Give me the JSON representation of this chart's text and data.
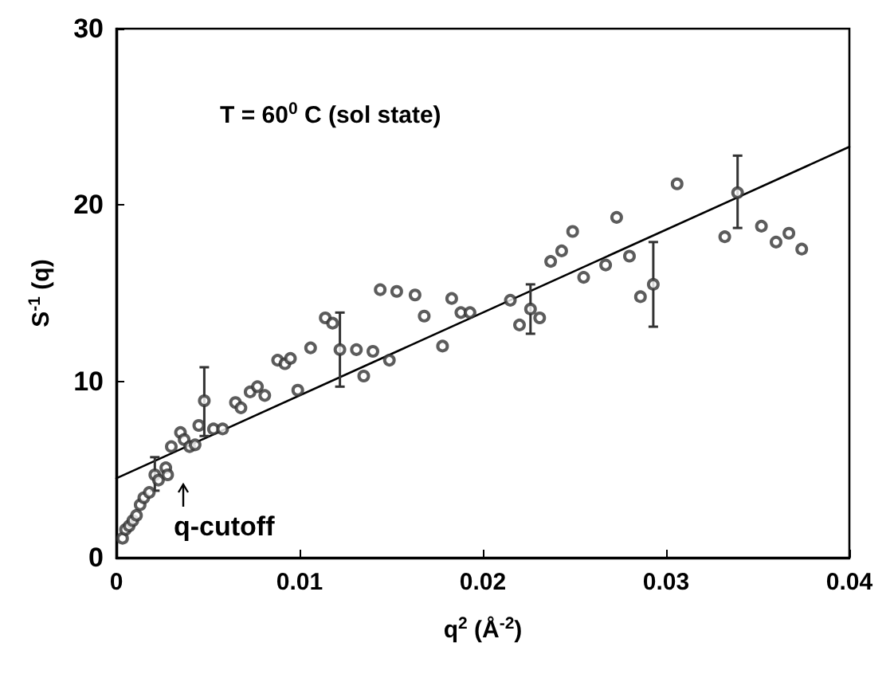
{
  "chart_data": {
    "type": "scatter",
    "xlabel": "q$^{2}$ (Å$^{-2}$)",
    "ylabel": "S$^{-1}$ (q)",
    "annotations": [
      "T = 60$^{0}$ C (sol state)",
      "q-cutoff"
    ],
    "xlim": [
      0,
      0.04
    ],
    "xticks": [
      0,
      0.01,
      0.02,
      0.03,
      0.04
    ],
    "ylim": [
      0,
      30
    ],
    "yticks": [
      0,
      10,
      20,
      30
    ],
    "grid": false,
    "marker": "circle",
    "series": [
      {
        "color": "#333333",
        "x": [
          0.00034,
          0.0005,
          0.0007,
          0.0009,
          0.0011,
          0.0013,
          0.0015,
          0.0018,
          0.0021,
          0.0023,
          0.0027,
          0.0028,
          0.003,
          0.0035,
          0.0037,
          0.004,
          0.0043,
          0.0045,
          0.0048,
          0.0053,
          0.0058,
          0.0065,
          0.0068,
          0.0073,
          0.0077,
          0.0081,
          0.0088,
          0.0092,
          0.0095,
          0.0099,
          0.0106,
          0.0114,
          0.0118,
          0.0122,
          0.0131,
          0.0135,
          0.014,
          0.0144,
          0.0149,
          0.0153,
          0.0163,
          0.0168,
          0.0178,
          0.0183,
          0.0188,
          0.0193,
          0.0215,
          0.022,
          0.0226,
          0.0231,
          0.0237,
          0.0243,
          0.0249,
          0.0255,
          0.0267,
          0.0273,
          0.028,
          0.0286,
          0.0293,
          0.0306,
          0.0332,
          0.0339,
          0.0352,
          0.036,
          0.0367,
          0.0374
        ],
        "values": [
          1.1,
          1.6,
          1.8,
          2.1,
          2.4,
          3.0,
          3.4,
          3.7,
          4.7,
          4.4,
          5.1,
          4.7,
          6.3,
          7.1,
          6.7,
          6.3,
          6.4,
          7.5,
          8.9,
          7.3,
          7.3,
          8.8,
          8.5,
          9.4,
          9.7,
          9.2,
          11.2,
          11.0,
          11.3,
          9.5,
          11.9,
          13.6,
          13.3,
          11.8,
          11.8,
          10.3,
          11.7,
          15.2,
          11.2,
          15.1,
          14.9,
          13.7,
          12.0,
          14.7,
          13.9,
          13.9,
          14.6,
          13.2,
          14.1,
          13.6,
          16.8,
          17.4,
          18.5,
          15.9,
          16.6,
          19.3,
          17.1,
          14.8,
          15.5,
          21.2,
          18.2,
          20.7,
          18.8,
          17.9,
          18.4,
          17.5
        ],
        "errors": [
          null,
          null,
          null,
          null,
          null,
          null,
          null,
          null,
          [
            3.8,
            5.7
          ],
          null,
          null,
          null,
          null,
          null,
          null,
          null,
          null,
          null,
          [
            6.9,
            10.8
          ],
          null,
          null,
          null,
          null,
          null,
          null,
          null,
          null,
          null,
          null,
          null,
          null,
          null,
          null,
          [
            9.7,
            13.9
          ],
          null,
          null,
          null,
          null,
          null,
          null,
          null,
          null,
          null,
          null,
          null,
          null,
          null,
          null,
          [
            12.7,
            15.5
          ],
          null,
          null,
          null,
          null,
          null,
          null,
          null,
          null,
          null,
          [
            13.1,
            17.9
          ],
          null,
          null,
          [
            18.7,
            22.8
          ],
          null,
          null,
          null,
          null
        ]
      },
      {
        "type": "line",
        "color": "#000000",
        "x": [
          0,
          0.04
        ],
        "values": [
          4.5,
          23.3
        ],
        "marker": "none",
        "line_style": "solid"
      }
    ]
  }
}
